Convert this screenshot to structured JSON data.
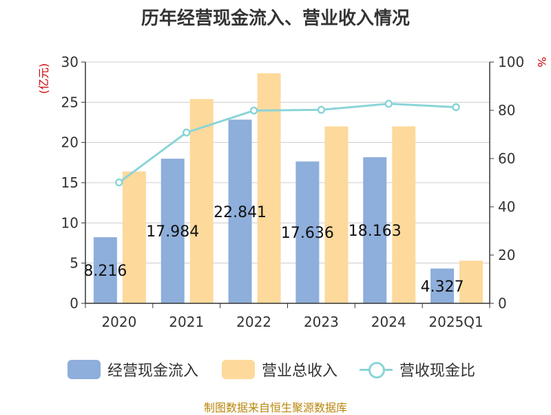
{
  "chart_data": {
    "type": "bar",
    "title": "历年经营现金流入、营业收入情况",
    "categories": [
      "2020",
      "2021",
      "2022",
      "2023",
      "2024",
      "2025Q1"
    ],
    "series": [
      {
        "name": "经营现金流入",
        "type": "bar",
        "axis": "left",
        "values": [
          8.216,
          17.984,
          22.841,
          17.636,
          18.163,
          4.327
        ],
        "labels": [
          "8.216",
          "17.984",
          "22.841",
          "17.636",
          "18.163",
          "4.327"
        ]
      },
      {
        "name": "营业总收入",
        "type": "bar",
        "axis": "left",
        "values": [
          16.4,
          25.4,
          28.6,
          22.0,
          22.0,
          5.3
        ]
      },
      {
        "name": "营收现金比",
        "type": "line",
        "axis": "right",
        "values": [
          50.1,
          70.8,
          79.9,
          80.2,
          82.7,
          81.3
        ]
      }
    ],
    "ylabel_left": "(亿元)",
    "ylabel_right": "%",
    "ylim_left": [
      0,
      30
    ],
    "ylim_right": [
      0,
      100
    ],
    "yticks_left": [
      "0",
      "5",
      "10",
      "15",
      "20",
      "25",
      "30"
    ],
    "yticks_right": [
      "0",
      "20",
      "40",
      "60",
      "80",
      "100"
    ],
    "grid": true,
    "legend_placement": "bottom",
    "colors": {
      "cash_inflow": "#8eaedb",
      "revenue": "#fdd99b",
      "ratio_line": "#8ad4d8",
      "axis_label": "#cc0000",
      "source": "#b8860b"
    }
  },
  "legend": {
    "item1": "经营现金流入",
    "item2": "营业总收入",
    "item3": "营收现金比"
  },
  "source_text": "制图数据来自恒生聚源数据库"
}
